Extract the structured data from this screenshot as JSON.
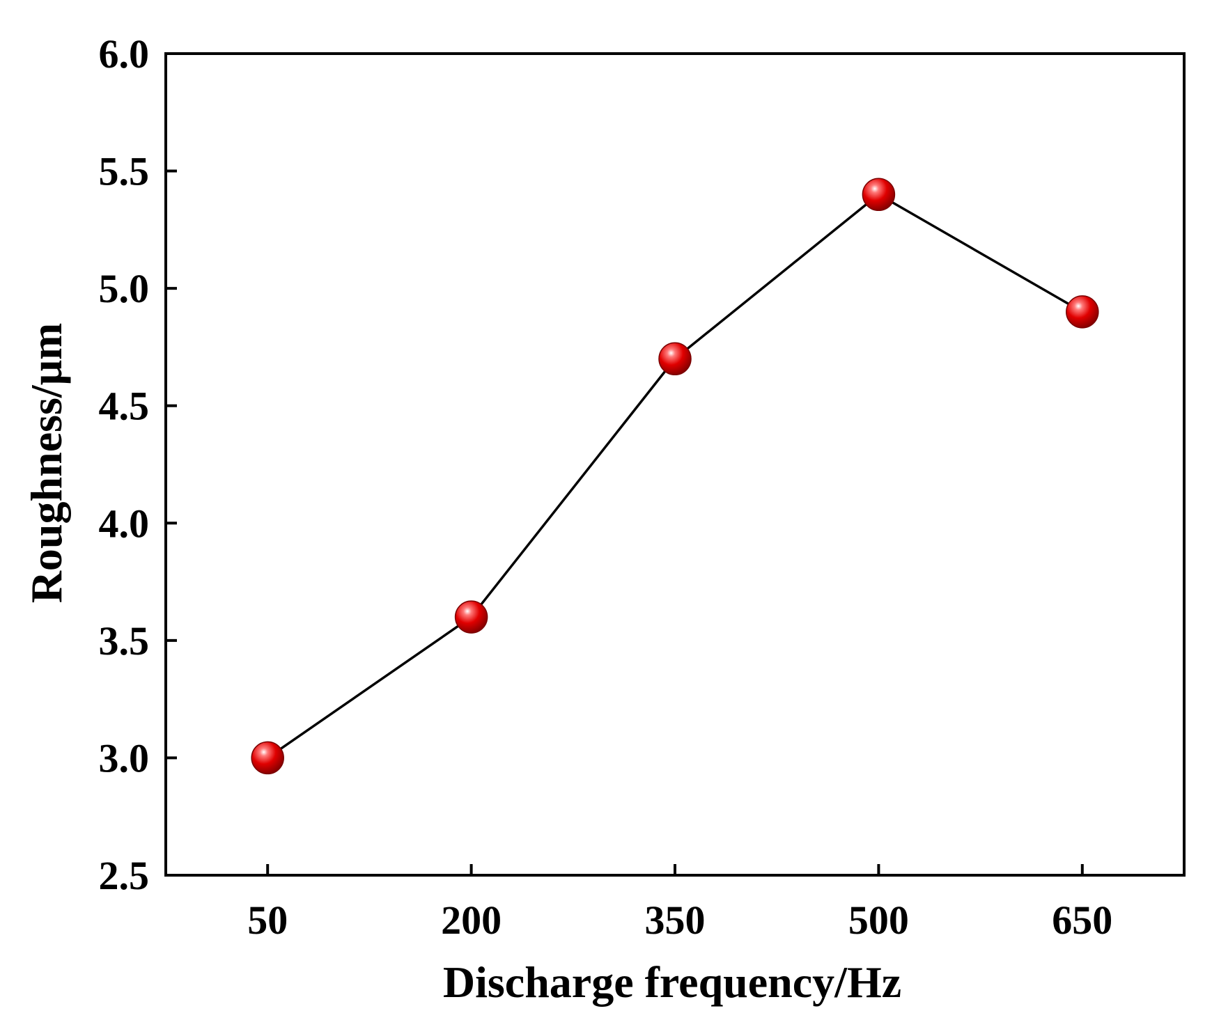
{
  "chart_data": {
    "type": "line",
    "title": "",
    "xlabel": "Discharge frequency/Hz",
    "ylabel": "Roughness/μm",
    "categories": [
      "50",
      "200",
      "350",
      "500",
      "650"
    ],
    "x": [
      50,
      200,
      350,
      500,
      650
    ],
    "series": [
      {
        "values": [
          3.0,
          3.6,
          4.7,
          5.4,
          4.9
        ]
      }
    ],
    "ylim": [
      2.5,
      6.0
    ],
    "yticks": [
      "2.5",
      "3.0",
      "3.5",
      "4.0",
      "4.5",
      "5.0",
      "5.5",
      "6.0"
    ],
    "grid": false,
    "legend": "none",
    "colors": {
      "marker": "#e00000",
      "marker_highlight": "#ffffff",
      "line": "#000000",
      "axis": "#000000"
    }
  }
}
